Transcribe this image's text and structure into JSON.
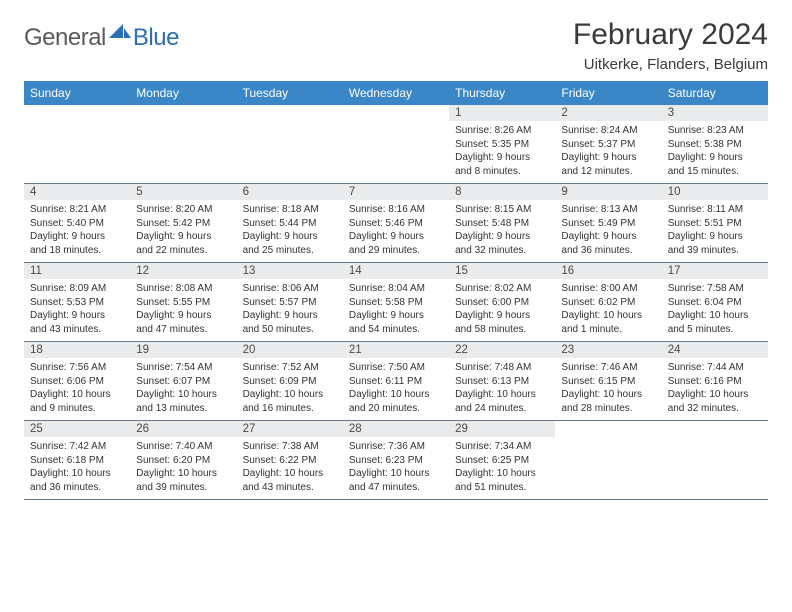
{
  "brand": {
    "text1": "General",
    "text2": "Blue"
  },
  "title": "February 2024",
  "subtitle": "Uitkerke, Flanders, Belgium",
  "colors": {
    "header_bg": "#3b86c7",
    "header_text": "#ffffff",
    "daynum_bg": "#e9ebec",
    "border": "#6b7a8a",
    "brand_gray": "#5a5a5a",
    "brand_blue": "#2d6fb5"
  },
  "weekdays": [
    "Sunday",
    "Monday",
    "Tuesday",
    "Wednesday",
    "Thursday",
    "Friday",
    "Saturday"
  ],
  "weeks": [
    [
      null,
      null,
      null,
      null,
      {
        "n": "1",
        "sr": "8:26 AM",
        "ss": "5:35 PM",
        "dl": "9 hours and 8 minutes."
      },
      {
        "n": "2",
        "sr": "8:24 AM",
        "ss": "5:37 PM",
        "dl": "9 hours and 12 minutes."
      },
      {
        "n": "3",
        "sr": "8:23 AM",
        "ss": "5:38 PM",
        "dl": "9 hours and 15 minutes."
      }
    ],
    [
      {
        "n": "4",
        "sr": "8:21 AM",
        "ss": "5:40 PM",
        "dl": "9 hours and 18 minutes."
      },
      {
        "n": "5",
        "sr": "8:20 AM",
        "ss": "5:42 PM",
        "dl": "9 hours and 22 minutes."
      },
      {
        "n": "6",
        "sr": "8:18 AM",
        "ss": "5:44 PM",
        "dl": "9 hours and 25 minutes."
      },
      {
        "n": "7",
        "sr": "8:16 AM",
        "ss": "5:46 PM",
        "dl": "9 hours and 29 minutes."
      },
      {
        "n": "8",
        "sr": "8:15 AM",
        "ss": "5:48 PM",
        "dl": "9 hours and 32 minutes."
      },
      {
        "n": "9",
        "sr": "8:13 AM",
        "ss": "5:49 PM",
        "dl": "9 hours and 36 minutes."
      },
      {
        "n": "10",
        "sr": "8:11 AM",
        "ss": "5:51 PM",
        "dl": "9 hours and 39 minutes."
      }
    ],
    [
      {
        "n": "11",
        "sr": "8:09 AM",
        "ss": "5:53 PM",
        "dl": "9 hours and 43 minutes."
      },
      {
        "n": "12",
        "sr": "8:08 AM",
        "ss": "5:55 PM",
        "dl": "9 hours and 47 minutes."
      },
      {
        "n": "13",
        "sr": "8:06 AM",
        "ss": "5:57 PM",
        "dl": "9 hours and 50 minutes."
      },
      {
        "n": "14",
        "sr": "8:04 AM",
        "ss": "5:58 PM",
        "dl": "9 hours and 54 minutes."
      },
      {
        "n": "15",
        "sr": "8:02 AM",
        "ss": "6:00 PM",
        "dl": "9 hours and 58 minutes."
      },
      {
        "n": "16",
        "sr": "8:00 AM",
        "ss": "6:02 PM",
        "dl": "10 hours and 1 minute."
      },
      {
        "n": "17",
        "sr": "7:58 AM",
        "ss": "6:04 PM",
        "dl": "10 hours and 5 minutes."
      }
    ],
    [
      {
        "n": "18",
        "sr": "7:56 AM",
        "ss": "6:06 PM",
        "dl": "10 hours and 9 minutes."
      },
      {
        "n": "19",
        "sr": "7:54 AM",
        "ss": "6:07 PM",
        "dl": "10 hours and 13 minutes."
      },
      {
        "n": "20",
        "sr": "7:52 AM",
        "ss": "6:09 PM",
        "dl": "10 hours and 16 minutes."
      },
      {
        "n": "21",
        "sr": "7:50 AM",
        "ss": "6:11 PM",
        "dl": "10 hours and 20 minutes."
      },
      {
        "n": "22",
        "sr": "7:48 AM",
        "ss": "6:13 PM",
        "dl": "10 hours and 24 minutes."
      },
      {
        "n": "23",
        "sr": "7:46 AM",
        "ss": "6:15 PM",
        "dl": "10 hours and 28 minutes."
      },
      {
        "n": "24",
        "sr": "7:44 AM",
        "ss": "6:16 PM",
        "dl": "10 hours and 32 minutes."
      }
    ],
    [
      {
        "n": "25",
        "sr": "7:42 AM",
        "ss": "6:18 PM",
        "dl": "10 hours and 36 minutes."
      },
      {
        "n": "26",
        "sr": "7:40 AM",
        "ss": "6:20 PM",
        "dl": "10 hours and 39 minutes."
      },
      {
        "n": "27",
        "sr": "7:38 AM",
        "ss": "6:22 PM",
        "dl": "10 hours and 43 minutes."
      },
      {
        "n": "28",
        "sr": "7:36 AM",
        "ss": "6:23 PM",
        "dl": "10 hours and 47 minutes."
      },
      {
        "n": "29",
        "sr": "7:34 AM",
        "ss": "6:25 PM",
        "dl": "10 hours and 51 minutes."
      },
      null,
      null
    ]
  ],
  "labels": {
    "sunrise": "Sunrise:",
    "sunset": "Sunset:",
    "daylight": "Daylight:"
  }
}
